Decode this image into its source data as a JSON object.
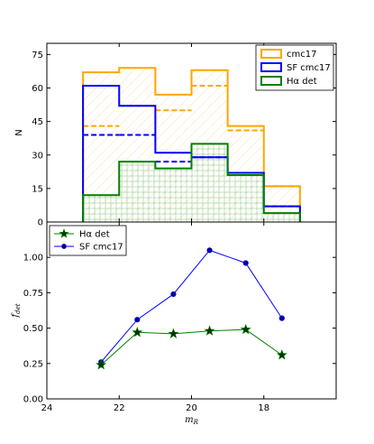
{
  "chart_data": [
    {
      "type": "bar",
      "subtype": "step-histogram",
      "ylabel": "N",
      "ylim": [
        0,
        80
      ],
      "yticks": [
        0,
        15,
        30,
        45,
        60,
        75
      ],
      "xlim": [
        24,
        16
      ],
      "bin_edges": [
        23,
        22,
        21,
        20,
        19,
        18,
        17
      ],
      "series": [
        {
          "name": "cmc17",
          "color": "#FFA500",
          "values": [
            67,
            69,
            57,
            68,
            43,
            16
          ],
          "style": "solid-hatched"
        },
        {
          "name": "SF cmc17",
          "color": "#0000FF",
          "values": [
            61,
            52,
            31,
            29,
            22,
            7
          ],
          "style": "solid"
        },
        {
          "name": "Hα det",
          "color": "#008000",
          "values": [
            12,
            27,
            24,
            35,
            21,
            4
          ],
          "style": "solid-hatched"
        }
      ],
      "dashed_series": [
        {
          "color": "#FFA500",
          "values": [
            43,
            52,
            50,
            61,
            41,
            16
          ]
        },
        {
          "color": "#0000FF",
          "values": [
            39,
            39,
            27,
            29,
            22,
            7
          ]
        }
      ],
      "legend": {
        "placement": "top-right",
        "entries": [
          "cmc17",
          "SF cmc17",
          "Hα det"
        ]
      }
    },
    {
      "type": "line",
      "xlabel": "m_R",
      "ylabel": "f_det",
      "xlim": [
        24,
        16
      ],
      "ylim": [
        0,
        1.25
      ],
      "xticks": [
        24,
        22,
        20,
        18
      ],
      "yticks": [
        0.0,
        0.25,
        0.5,
        0.75,
        1.0
      ],
      "ytick_labels": [
        "0.00",
        "0.25",
        "0.50",
        "0.75",
        "1.00"
      ],
      "x": [
        22.5,
        21.5,
        20.5,
        19.5,
        18.5,
        17.5
      ],
      "series": [
        {
          "name": "Hα det",
          "color": "#008000",
          "marker": "star",
          "values": [
            0.24,
            0.47,
            0.46,
            0.48,
            0.49,
            0.31
          ]
        },
        {
          "name": "SF cmc17",
          "color": "#0000FF",
          "marker": "circle",
          "values": [
            0.26,
            0.56,
            0.74,
            1.05,
            0.96,
            0.57
          ]
        }
      ],
      "legend": {
        "placement": "top-left",
        "entries": [
          "Hα det",
          "SF cmc17"
        ]
      }
    }
  ]
}
